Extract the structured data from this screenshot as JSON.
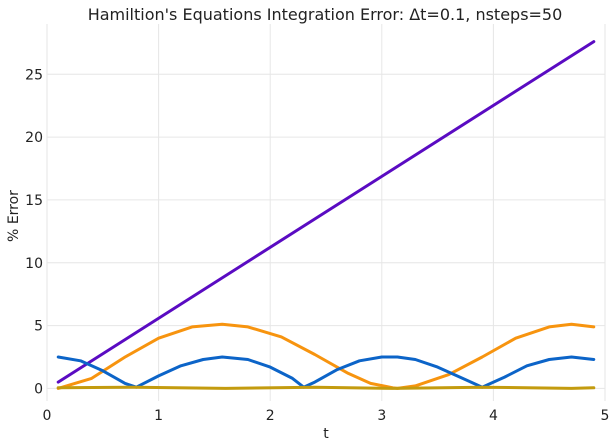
{
  "chart_data": {
    "type": "line",
    "title": "Hamiltion's Equations Integration Error: Δt=0.1, nsteps=50",
    "xlabel": "t",
    "ylabel": "% Error",
    "xlim": [
      0,
      5
    ],
    "ylim": [
      -1,
      29
    ],
    "xticks": [
      0,
      1,
      2,
      3,
      4,
      5
    ],
    "yticks": [
      0,
      5,
      10,
      15,
      20,
      25
    ],
    "grid": true,
    "legend": "none",
    "series": [
      {
        "color": "#5a0bc2",
        "x": [
          0.1,
          4.9
        ],
        "y": [
          0.5,
          27.6
        ]
      },
      {
        "color": "#f7940f",
        "x": [
          0.1,
          0.4,
          0.7,
          1.0,
          1.3,
          1.57,
          1.8,
          2.1,
          2.4,
          2.7,
          2.9,
          3.1,
          3.14,
          3.3,
          3.6,
          3.9,
          4.2,
          4.5,
          4.7,
          4.9
        ],
        "y": [
          0.0,
          0.8,
          2.5,
          4.0,
          4.9,
          5.1,
          4.9,
          4.1,
          2.7,
          1.2,
          0.4,
          0.05,
          0.0,
          0.2,
          1.1,
          2.5,
          4.0,
          4.9,
          5.1,
          4.9
        ]
      },
      {
        "color": "#0c64c8",
        "x": [
          0.1,
          0.3,
          0.5,
          0.7,
          0.8,
          1.0,
          1.2,
          1.4,
          1.57,
          1.8,
          2.0,
          2.2,
          2.3,
          2.4,
          2.6,
          2.8,
          3.0,
          3.14,
          3.3,
          3.5,
          3.7,
          3.9,
          4.1,
          4.3,
          4.5,
          4.7,
          4.9
        ],
        "y": [
          2.5,
          2.2,
          1.4,
          0.4,
          0.1,
          1.0,
          1.8,
          2.3,
          2.5,
          2.3,
          1.7,
          0.8,
          0.1,
          0.5,
          1.5,
          2.2,
          2.5,
          2.5,
          2.3,
          1.7,
          0.9,
          0.1,
          0.9,
          1.8,
          2.3,
          2.5,
          2.3
        ]
      },
      {
        "color": "#c39b0f",
        "x": [
          0.1,
          0.8,
          1.6,
          2.4,
          3.1,
          3.9,
          4.7,
          4.9
        ],
        "y": [
          0.05,
          0.1,
          0.0,
          0.1,
          0.0,
          0.1,
          0.0,
          0.05
        ]
      }
    ]
  }
}
